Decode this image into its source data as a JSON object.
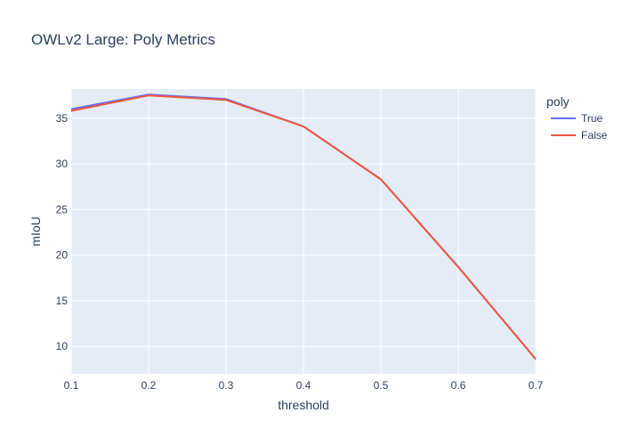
{
  "chart_data": {
    "type": "line",
    "title": "OWLv2 Large: Poly Metrics",
    "xlabel": "threshold",
    "ylabel": "mIoU",
    "x": [
      0.1,
      0.2,
      0.3,
      0.4,
      0.5,
      0.6,
      0.7
    ],
    "x_ticks": [
      "0.1",
      "0.2",
      "0.3",
      "0.4",
      "0.5",
      "0.6",
      "0.7"
    ],
    "y_ticks": [
      "10",
      "15",
      "20",
      "25",
      "30",
      "35"
    ],
    "xlim": [
      0.1,
      0.7
    ],
    "ylim": [
      7.0,
      38.2
    ],
    "grid": true,
    "legend_title": "poly",
    "legend_position": "right",
    "plot_background": "#e5ecf6",
    "series": [
      {
        "name": "True",
        "color": "#636efa",
        "values": [
          36.0,
          37.6,
          37.1,
          34.1,
          28.3,
          18.7,
          8.6
        ]
      },
      {
        "name": "False",
        "color": "#ef553b",
        "values": [
          35.8,
          37.5,
          37.0,
          34.1,
          28.3,
          18.7,
          8.6
        ]
      }
    ]
  }
}
